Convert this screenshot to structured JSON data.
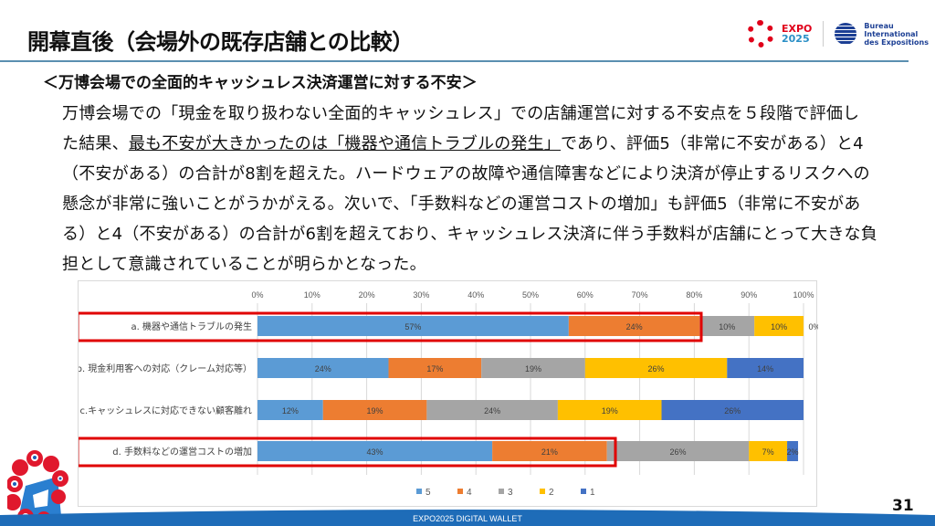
{
  "title": "開幕直後（会場外の既存店舗との比較）",
  "logos": {
    "expo": "EXPO",
    "expo_year": "2025",
    "bie": [
      "Bureau",
      "International",
      "des Expositions"
    ]
  },
  "subtitle": "＜万博会場での全面的キャッシュレス決済運営に対する不安＞",
  "body": {
    "line1": "万博会場での「現金を取り扱わない全面的キャッシュレス」での店舗運営に対する不安点を５段階で評価し",
    "line2_pre": "た結果、",
    "line2_underline": "最も不安が大きかったのは「機器や通信トラブルの発生」",
    "line2_post": "であり、評価5（非常に不安がある）と4",
    "line3": "（不安がある）の合計が8割を超えた。ハードウェアの故障や通信障害などにより決済が停止するリスクへの",
    "line4": "懸念が非常に強いことがうかがえる。次いで、「手数料などの運営コストの増加」も評価5（非常に不安があ",
    "line5": "る）と4（不安がある）の合計が6割を超えており、キャッシュレス決済に伴う手数料が店舗にとって大きな負",
    "line6": "担として意識されていることが明らかとなった。"
  },
  "chart_data": {
    "type": "bar",
    "orientation": "horizontal-stacked-100",
    "categories": [
      "a. 機器や通信トラブルの発生",
      "b. 現金利用客への対応（クレーム対応等）",
      "c.キャッシュレスに対応できない顧客離れ",
      "d. 手数料などの運営コストの増加"
    ],
    "series": [
      {
        "name": "5",
        "color": "#5b9bd5",
        "values": [
          57,
          24,
          12,
          43
        ]
      },
      {
        "name": "4",
        "color": "#ed7d31",
        "values": [
          24,
          17,
          19,
          21
        ]
      },
      {
        "name": "3",
        "color": "#a5a5a5",
        "values": [
          10,
          19,
          24,
          26
        ]
      },
      {
        "name": "2",
        "color": "#ffc000",
        "values": [
          10,
          26,
          19,
          7
        ]
      },
      {
        "name": "1",
        "color": "#4472c4",
        "values": [
          0,
          14,
          26,
          2
        ]
      }
    ],
    "xticks": [
      "0%",
      "10%",
      "20%",
      "30%",
      "40%",
      "50%",
      "60%",
      "70%",
      "80%",
      "90%",
      "100%"
    ],
    "xlim": [
      0,
      100
    ],
    "highlighted": [
      0,
      3
    ],
    "legend": "bottom",
    "grid": true
  },
  "footer": "EXPO2025 DIGITAL WALLET",
  "page_number": "31"
}
